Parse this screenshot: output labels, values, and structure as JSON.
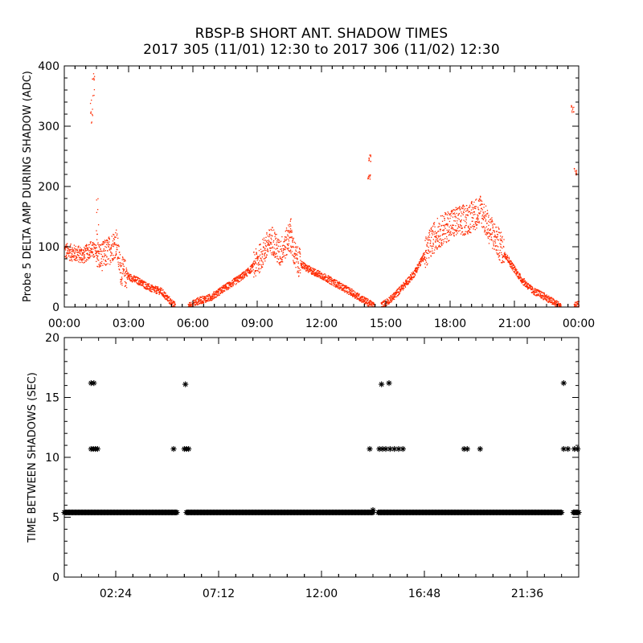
{
  "title": "RBSP-B SHORT ANT. SHADOW TIMES",
  "subtitle": "2017 305 (11/01) 12:30 to 2017 306 (11/02) 12:30",
  "chart_data": [
    {
      "type": "scatter",
      "ylabel": "Probe 5 DELTA AMP DURING SHADOW (ADC)",
      "xlabel": "",
      "x_unit": "hours",
      "xlim": [
        0,
        24
      ],
      "ylim": [
        0,
        400
      ],
      "x_ticks": [
        0,
        3,
        6,
        9,
        12,
        15,
        18,
        21,
        24
      ],
      "x_tick_labels": [
        "00:00",
        "03:00",
        "06:00",
        "09:00",
        "12:00",
        "15:00",
        "18:00",
        "21:00",
        "00:00"
      ],
      "y_ticks": [
        0,
        100,
        200,
        300,
        400
      ],
      "y_tick_labels": [
        "0",
        "100",
        "200",
        "300",
        "400"
      ],
      "color": "#ff2a00",
      "marker": "dot",
      "grid": false,
      "series": [
        {
          "profile": [
            [
              0.0,
              93
            ],
            [
              0.5,
              89
            ],
            [
              0.9,
              86
            ],
            [
              1.2,
              97
            ],
            [
              1.7,
              83
            ],
            [
              2.1,
              95
            ],
            [
              2.4,
              108
            ],
            [
              2.6,
              62
            ],
            [
              3.0,
              50
            ],
            [
              3.5,
              42
            ],
            [
              4.0,
              31
            ],
            [
              4.5,
              26
            ],
            [
              4.8,
              14
            ],
            [
              5.1,
              3
            ],
            [
              5.8,
              2
            ],
            [
              6.2,
              10
            ],
            [
              6.8,
              16
            ],
            [
              7.3,
              28
            ],
            [
              8.0,
              44
            ],
            [
              8.6,
              60
            ],
            [
              9.0,
              76
            ],
            [
              9.4,
              100
            ],
            [
              9.7,
              112
            ],
            [
              10.0,
              88
            ],
            [
              10.5,
              116
            ],
            [
              10.8,
              78
            ],
            [
              11.3,
              64
            ],
            [
              12.0,
              52
            ],
            [
              12.6,
              40
            ],
            [
              13.2,
              28
            ],
            [
              13.8,
              15
            ],
            [
              14.4,
              2
            ],
            [
              14.8,
              3
            ],
            [
              15.3,
              16
            ],
            [
              15.8,
              35
            ],
            [
              16.3,
              56
            ],
            [
              16.8,
              88
            ],
            [
              17.3,
              120
            ],
            [
              18.0,
              138
            ],
            [
              18.6,
              144
            ],
            [
              19.0,
              150
            ],
            [
              19.4,
              162
            ],
            [
              19.8,
              130
            ],
            [
              20.3,
              102
            ],
            [
              20.8,
              72
            ],
            [
              21.3,
              46
            ],
            [
              21.8,
              28
            ],
            [
              22.4,
              17
            ],
            [
              22.9,
              6
            ],
            [
              23.1,
              2
            ],
            [
              23.8,
              2
            ],
            [
              24.0,
              4
            ]
          ],
          "gaps": [
            [
              5.15,
              5.75
            ],
            [
              14.45,
              14.75
            ],
            [
              23.15,
              23.75
            ]
          ],
          "spread": [
            [
              0.0,
              1.5,
              14
            ],
            [
              1.5,
              2.9,
              24
            ],
            [
              8.8,
              11.0,
              24
            ],
            [
              16.8,
              20.5,
              26
            ]
          ],
          "spikes": [
            [
              1.25,
              345,
              20
            ],
            [
              1.35,
              388,
              20
            ],
            [
              1.5,
              180,
              40
            ],
            [
              10.5,
              148,
              14
            ],
            [
              14.2,
              255,
              8
            ],
            [
              14.2,
              222,
              6
            ],
            [
              23.7,
              335,
              6
            ],
            [
              23.8,
              230,
              6
            ]
          ]
        }
      ]
    },
    {
      "type": "scatter",
      "ylabel": "TIME BETWEEN SHADOWS (SEC)",
      "xlabel": "",
      "x_unit": "hours",
      "xlim": [
        0,
        24
      ],
      "ylim": [
        0,
        20
      ],
      "x_ticks": [
        2.4,
        7.2,
        12.0,
        16.8,
        21.6
      ],
      "x_tick_labels": [
        "02:24",
        "07:12",
        "12:00",
        "16:48",
        "21:36"
      ],
      "y_ticks": [
        0,
        5,
        10,
        15,
        20
      ],
      "y_tick_labels": [
        "0",
        "5",
        "10",
        "15",
        "20"
      ],
      "color": "#000000",
      "marker": "asterisk",
      "grid": false,
      "series": [
        {
          "baseline": 5.4,
          "baseline_ranges": [
            [
              0.0,
              5.25
            ],
            [
              5.7,
              14.4
            ],
            [
              14.65,
              23.2
            ],
            [
              23.75,
              24.0
            ]
          ],
          "baseline_dot_spacing": 0.05,
          "points": [
            [
              1.25,
              16.2
            ],
            [
              1.38,
              16.2
            ],
            [
              1.25,
              10.7
            ],
            [
              1.35,
              10.7
            ],
            [
              1.45,
              10.7
            ],
            [
              1.55,
              10.7
            ],
            [
              5.1,
              10.7
            ],
            [
              5.6,
              10.7
            ],
            [
              5.7,
              10.7
            ],
            [
              5.8,
              10.7
            ],
            [
              5.65,
              16.1
            ],
            [
              14.25,
              10.7
            ],
            [
              14.7,
              10.7
            ],
            [
              14.85,
              10.7
            ],
            [
              15.0,
              10.7
            ],
            [
              15.2,
              10.7
            ],
            [
              15.4,
              10.7
            ],
            [
              15.6,
              10.7
            ],
            [
              15.8,
              10.7
            ],
            [
              14.8,
              16.1
            ],
            [
              15.15,
              16.2
            ],
            [
              14.4,
              5.6
            ],
            [
              18.65,
              10.7
            ],
            [
              18.8,
              10.7
            ],
            [
              19.4,
              10.7
            ],
            [
              23.3,
              16.2
            ],
            [
              23.3,
              10.7
            ],
            [
              23.5,
              10.7
            ],
            [
              23.8,
              10.7
            ],
            [
              23.95,
              10.7
            ]
          ]
        }
      ]
    }
  ]
}
